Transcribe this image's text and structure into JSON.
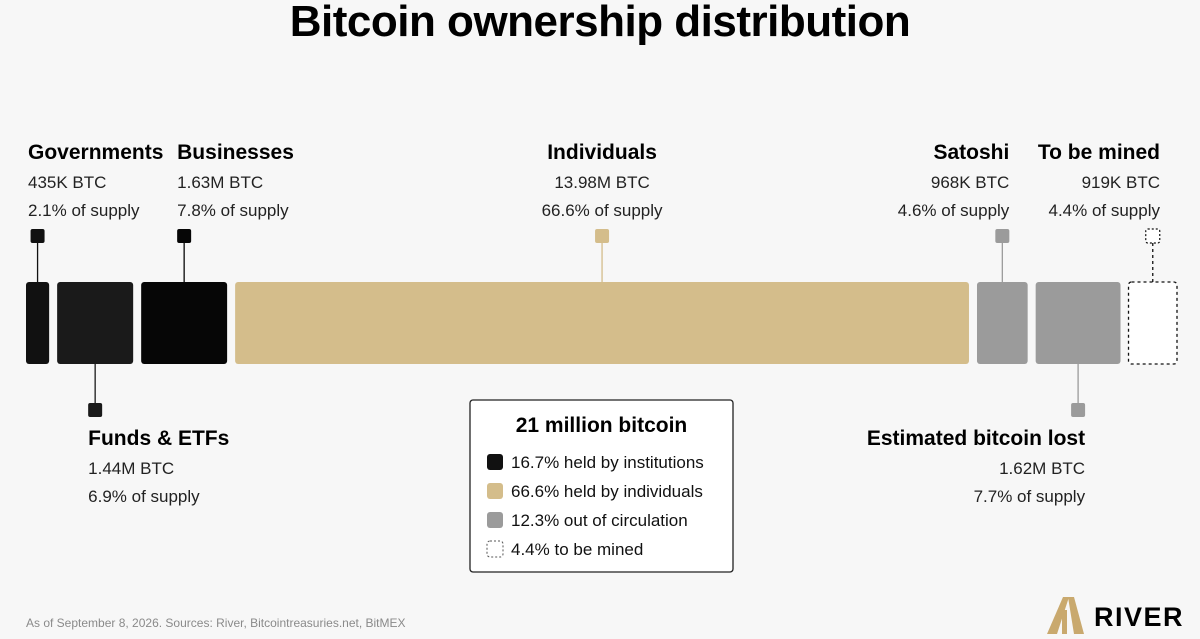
{
  "chart_data": {
    "type": "bar",
    "title": "Bitcoin ownership distribution",
    "segments": [
      {
        "name": "Governments",
        "amount": "435K BTC",
        "share_text": "2.1% of supply",
        "percent": 2.1,
        "color": "#111111",
        "style": "solid",
        "label_side": "top"
      },
      {
        "name": "Funds & ETFs",
        "amount": "1.44M BTC",
        "share_text": "6.9% of supply",
        "percent": 6.9,
        "color": "#1a1a1a",
        "style": "solid",
        "label_side": "bottom"
      },
      {
        "name": "Businesses",
        "amount": "1.63M BTC",
        "share_text": "7.8% of supply",
        "percent": 7.8,
        "color": "#060606",
        "style": "solid",
        "label_side": "top"
      },
      {
        "name": "Individuals",
        "amount": "13.98M BTC",
        "share_text": "66.6% of supply",
        "percent": 66.6,
        "color": "#d4bd8b",
        "style": "solid",
        "label_side": "top"
      },
      {
        "name": "Satoshi",
        "amount": "968K BTC",
        "share_text": "4.6% of supply",
        "percent": 4.6,
        "color": "#9b9b9b",
        "style": "solid",
        "label_side": "top"
      },
      {
        "name": "Estimated bitcoin lost",
        "amount": "1.62M BTC",
        "share_text": "7.7% of supply",
        "percent": 7.7,
        "color": "#9b9b9b",
        "style": "solid",
        "label_side": "bottom"
      },
      {
        "name": "To be mined",
        "amount": "919K BTC",
        "share_text": "4.4% of supply",
        "percent": 4.4,
        "color": "#111111",
        "style": "dashed",
        "label_side": "top"
      }
    ],
    "legend": {
      "title": "21 million bitcoin",
      "items": [
        {
          "label": "16.7% held by institutions",
          "color": "#111111",
          "style": "solid"
        },
        {
          "label": "66.6% held by individuals",
          "color": "#d4bd8b",
          "style": "solid"
        },
        {
          "label": "12.3% out of circulation",
          "color": "#9b9b9b",
          "style": "solid"
        },
        {
          "label": "4.4% to be mined",
          "color": "#555555",
          "style": "dashed"
        }
      ]
    }
  },
  "footer": {
    "note": "As of September 8, 2026. Sources: River, Bitcointreasuries.net, BitMEX",
    "brand": "RIVER",
    "brand_color": "#c9a96e"
  }
}
